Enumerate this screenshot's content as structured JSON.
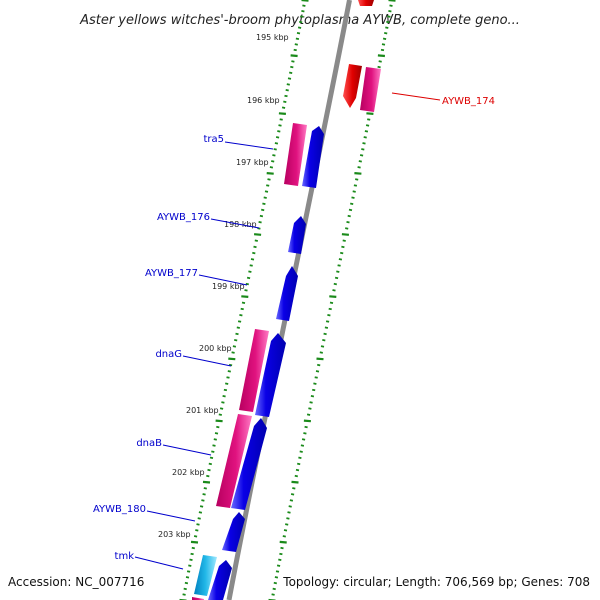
{
  "title": "Aster yellows witches'-broom phytoplasma AYWB, complete geno...",
  "footer": {
    "accession": "Accession: NC_007716",
    "summary": "Topology: circular; Length: 706,569 bp; Genes: 708"
  },
  "ruler_labels": [
    "195 kbp",
    "196 kbp",
    "197 kbp",
    "198 kbp",
    "199 kbp",
    "200 kbp",
    "201 kbp",
    "202 kbp",
    "203 kbp"
  ],
  "gene_labels": [
    "tra5",
    "AYWB_176",
    "AYWB_177",
    "dnaG",
    "dnaB",
    "AYWB_180",
    "tmk",
    "AYWB_174"
  ],
  "colors": {
    "forward_gene": "#0a00e6",
    "forward_gene_highlight": "#6a6aff",
    "rna_gene": "#e0127f",
    "rna_gene_highlight": "#ff7ac4",
    "reverse_gene": "#e00000",
    "tmk_gene": "#22b8e8",
    "ticks": "#1a8a1a",
    "backbone": "#8a8a8a",
    "forward_label": "#0000cc",
    "reverse_label": "#dd0000"
  }
}
